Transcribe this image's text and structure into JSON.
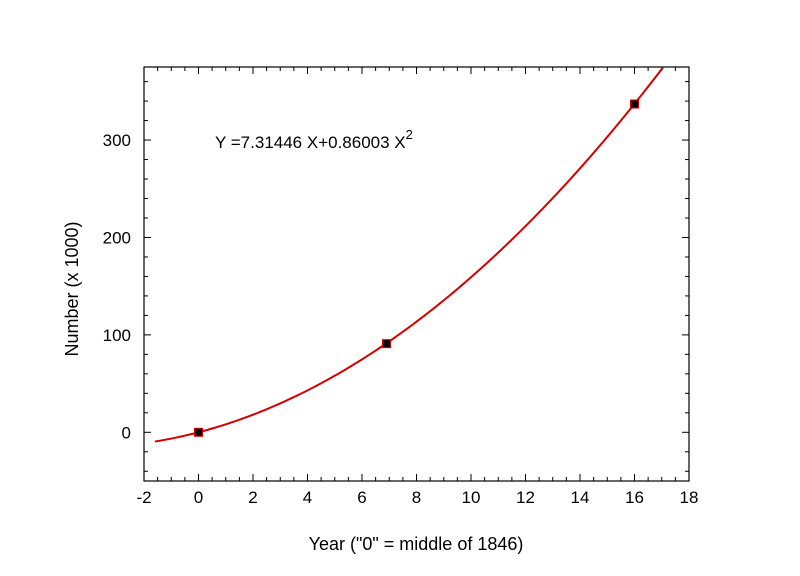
{
  "chart_data": {
    "type": "scatter",
    "title": "",
    "xlabel": "Year (\"0\" = middle of 1846)",
    "ylabel": "Number (x 1000)",
    "xlim": [
      -2,
      18
    ],
    "ylim": [
      -50,
      375
    ],
    "x_ticks": [
      "-2",
      "0",
      "2",
      "4",
      "6",
      "8",
      "10",
      "12",
      "14",
      "16",
      "18"
    ],
    "y_ticks": [
      "0",
      "100",
      "200",
      "300"
    ],
    "grid": false,
    "series": [
      {
        "points": [
          {
            "x": 0,
            "y": 0
          },
          {
            "x": 6.9,
            "y": 91
          },
          {
            "x": 16,
            "y": 337
          }
        ],
        "marker_color": "#000000"
      }
    ],
    "fit": {
      "a": 7.31446,
      "b": 0.86003,
      "x_from": -1.6,
      "x_to": 17.2,
      "color": "#d40000"
    },
    "annotation": {
      "text": "Y =7.31446 X+0.86003 X",
      "superscript": "2"
    }
  }
}
